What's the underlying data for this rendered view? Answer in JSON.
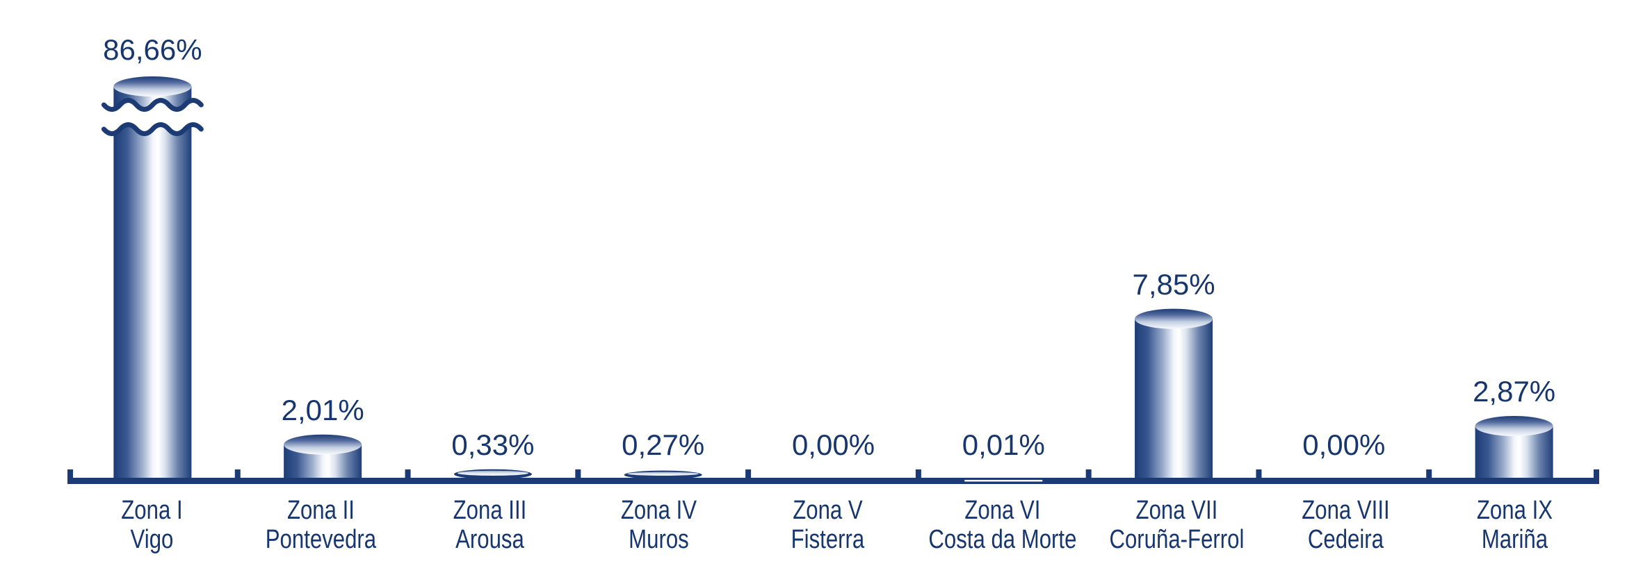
{
  "chart_data": {
    "type": "bar",
    "subtype": "3d-cylinder-vertical",
    "title": "",
    "xlabel": "",
    "ylabel": "",
    "unit": "%",
    "decimal_separator": ",",
    "grid": "off",
    "legend": "none",
    "background": "#ffffff",
    "broken_bar_index": 0,
    "axis_note": "first bar truncated with wavy break marks",
    "categories": [
      {
        "zone": "Zona I",
        "name": "Vigo"
      },
      {
        "zone": "Zona II",
        "name": "Pontevedra"
      },
      {
        "zone": "Zona III",
        "name": "Arousa"
      },
      {
        "zone": "Zona IV",
        "name": "Muros"
      },
      {
        "zone": "Zona V",
        "name": "Fisterra"
      },
      {
        "zone": "Zona VI",
        "name": "Costa da Morte"
      },
      {
        "zone": "Zona VII",
        "name": "Coruña-Ferrol"
      },
      {
        "zone": "Zona VIII",
        "name": "Cedeira"
      },
      {
        "zone": "Zona IX",
        "name": "Mariña"
      }
    ],
    "values": [
      86.66,
      2.01,
      0.33,
      0.27,
      0.0,
      0.01,
      7.85,
      0.0,
      2.87
    ],
    "value_labels": [
      "86,66%",
      "2,01%",
      "0,33%",
      "0,27%",
      "0,00%",
      "0,01%",
      "7,85%",
      "0,00%",
      "2,87%"
    ],
    "colors": {
      "navy": "#1c3b74",
      "text": "#17366e",
      "highlight": "#ffffff"
    }
  }
}
